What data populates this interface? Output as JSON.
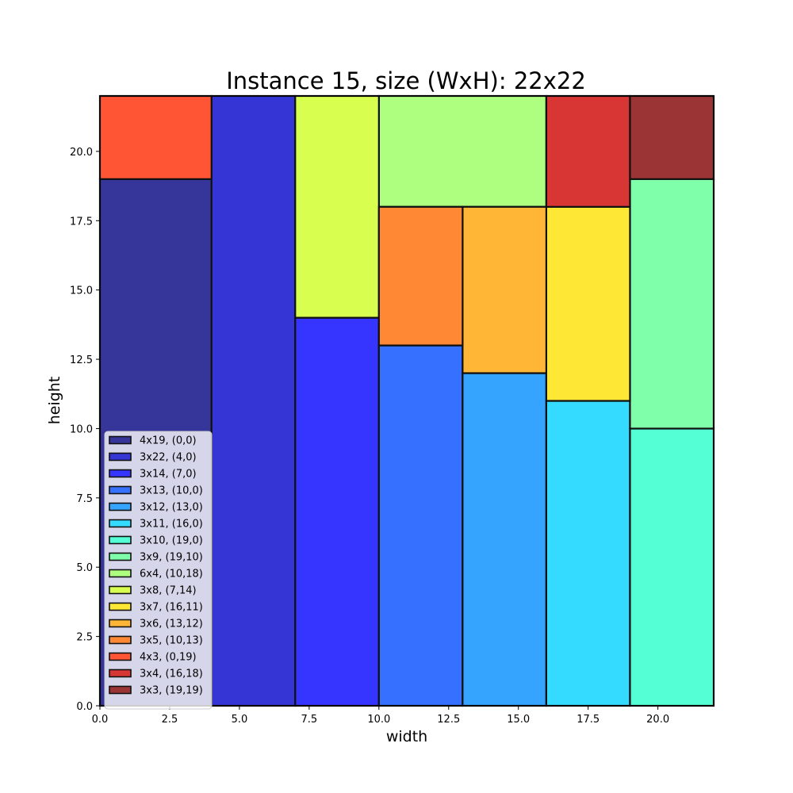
{
  "chart_data": {
    "type": "rectangle_packing",
    "title": "Instance 15, size (WxH): 22x22",
    "xlabel": "width",
    "ylabel": "height",
    "xlim": [
      0,
      22
    ],
    "ylim": [
      0,
      22
    ],
    "x_ticks": [
      0,
      2.5,
      5,
      7.5,
      10,
      12.5,
      15,
      17.5,
      20
    ],
    "x_tick_labels": [
      "0.0",
      "2.5",
      "5.0",
      "7.5",
      "10.0",
      "12.5",
      "15.0",
      "17.5",
      "20.0"
    ],
    "y_ticks": [
      0,
      2.5,
      5,
      7.5,
      10,
      12.5,
      15,
      17.5,
      20
    ],
    "y_tick_labels": [
      "0.0",
      "2.5",
      "5.0",
      "7.5",
      "10.0",
      "12.5",
      "15.0",
      "17.5",
      "20.0"
    ],
    "legend_position": "lower-left",
    "grid": false,
    "rectangles": [
      {
        "label": "4x19, (0,0)",
        "x": 0,
        "y": 0,
        "w": 4,
        "h": 19,
        "color": "#35359a"
      },
      {
        "label": "3x22, (4,0)",
        "x": 4,
        "y": 0,
        "w": 3,
        "h": 22,
        "color": "#3535d6"
      },
      {
        "label": "3x14, (7,0)",
        "x": 7,
        "y": 0,
        "w": 3,
        "h": 14,
        "color": "#3535ff"
      },
      {
        "label": "3x13, (10,0)",
        "x": 10,
        "y": 0,
        "w": 3,
        "h": 13,
        "color": "#3570ff"
      },
      {
        "label": "3x12, (13,0)",
        "x": 13,
        "y": 0,
        "w": 3,
        "h": 12,
        "color": "#35a4ff"
      },
      {
        "label": "3x11, (16,0)",
        "x": 16,
        "y": 0,
        "w": 3,
        "h": 11,
        "color": "#35dbff"
      },
      {
        "label": "3x10, (19,0)",
        "x": 19,
        "y": 0,
        "w": 3,
        "h": 10,
        "color": "#55ffd6"
      },
      {
        "label": "3x9, (19,10)",
        "x": 19,
        "y": 10,
        "w": 3,
        "h": 9,
        "color": "#80ffaa"
      },
      {
        "label": "6x4, (10,18)",
        "x": 10,
        "y": 18,
        "w": 6,
        "h": 4,
        "color": "#aeff80"
      },
      {
        "label": "3x8, (7,14)",
        "x": 7,
        "y": 14,
        "w": 3,
        "h": 8,
        "color": "#d8ff4f"
      },
      {
        "label": "3x7, (16,11)",
        "x": 16,
        "y": 11,
        "w": 3,
        "h": 7,
        "color": "#ffe835"
      },
      {
        "label": "3x6, (13,12)",
        "x": 13,
        "y": 12,
        "w": 3,
        "h": 6,
        "color": "#ffb535"
      },
      {
        "label": "3x5, (10,13)",
        "x": 10,
        "y": 13,
        "w": 3,
        "h": 5,
        "color": "#ff8835"
      },
      {
        "label": "4x3, (0,19)",
        "x": 0,
        "y": 19,
        "w": 4,
        "h": 3,
        "color": "#ff5535"
      },
      {
        "label": "3x4, (16,18)",
        "x": 16,
        "y": 18,
        "w": 3,
        "h": 4,
        "color": "#d83535"
      },
      {
        "label": "3x3, (19,19)",
        "x": 19,
        "y": 19,
        "w": 3,
        "h": 3,
        "color": "#9b3535"
      }
    ]
  }
}
